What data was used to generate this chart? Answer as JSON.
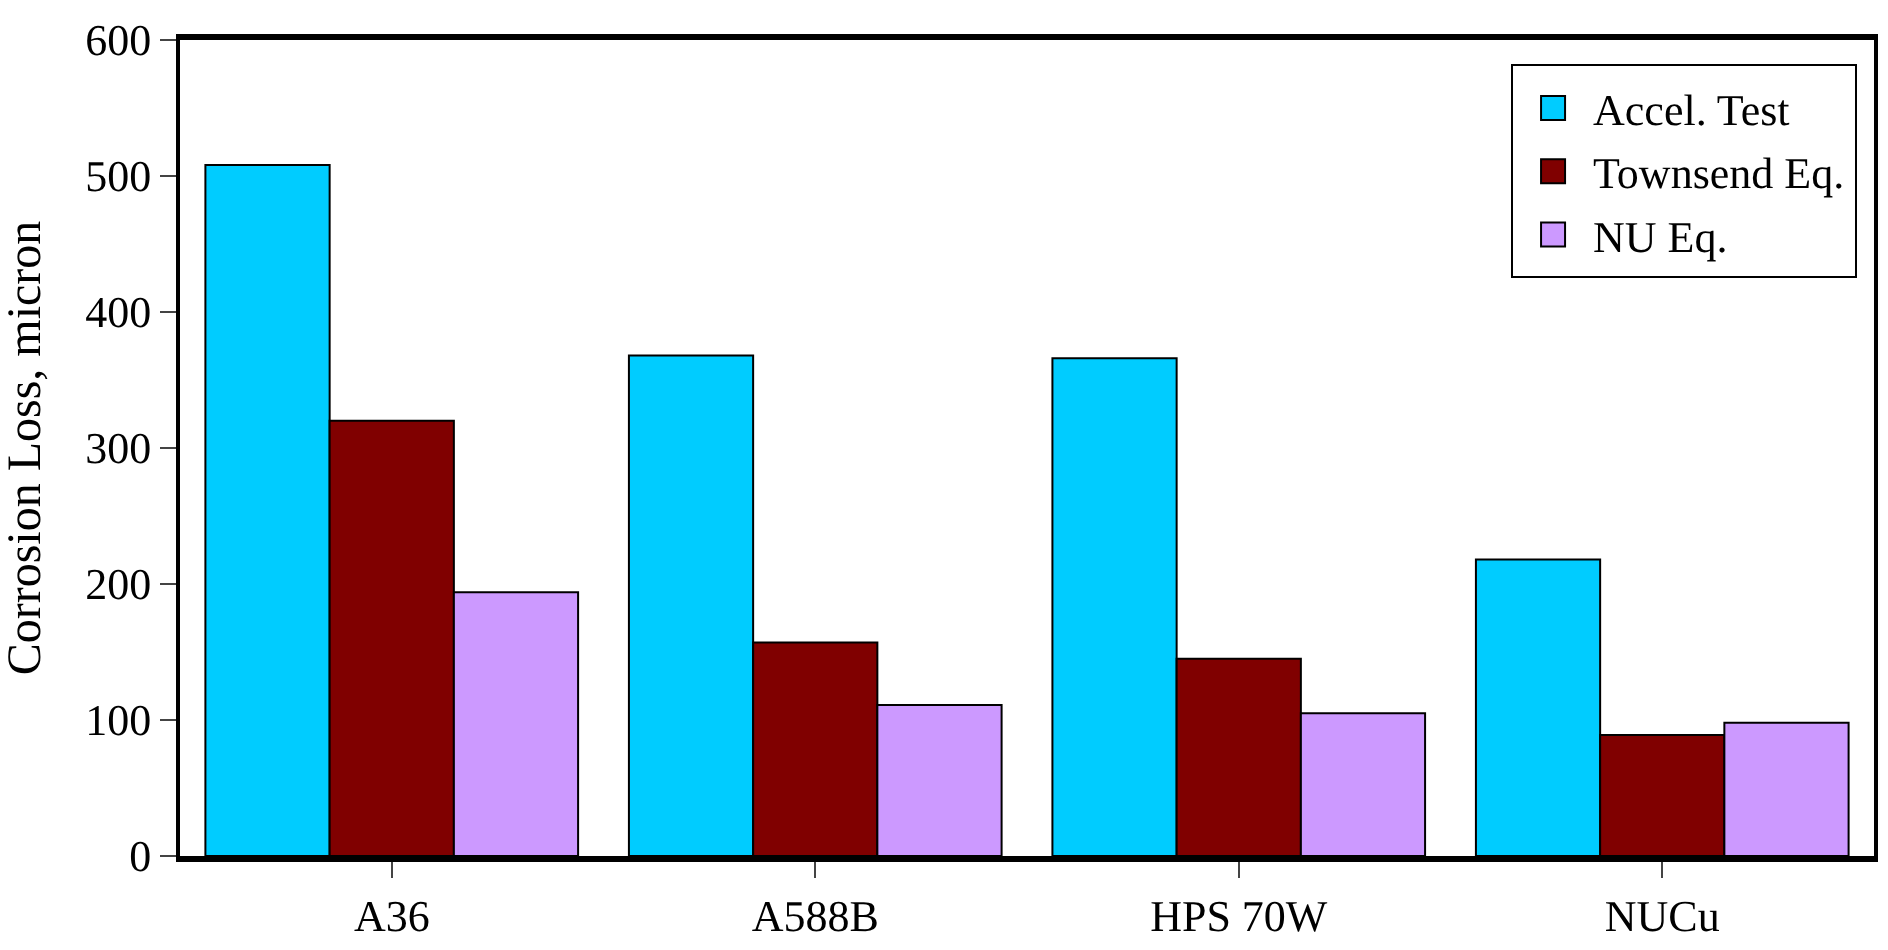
{
  "chart_data": {
    "type": "bar",
    "ylabel": "Corrosion Loss, micron",
    "categories": [
      "A36",
      "A588B",
      "HPS 70W",
      "NUCu"
    ],
    "series": [
      {
        "name": "Accel. Test",
        "color": "#00ccff",
        "values": [
          508,
          368,
          366,
          218
        ]
      },
      {
        "name": "Townsend Eq.",
        "color": "#800000",
        "values": [
          320,
          157,
          145,
          89
        ]
      },
      {
        "name": "NU Eq.",
        "color": "#cc99ff",
        "values": [
          194,
          111,
          105,
          98
        ]
      }
    ],
    "ylim": [
      0,
      600
    ],
    "yticks": [
      0,
      100,
      200,
      300,
      400,
      500,
      600
    ],
    "legend": "top right"
  }
}
